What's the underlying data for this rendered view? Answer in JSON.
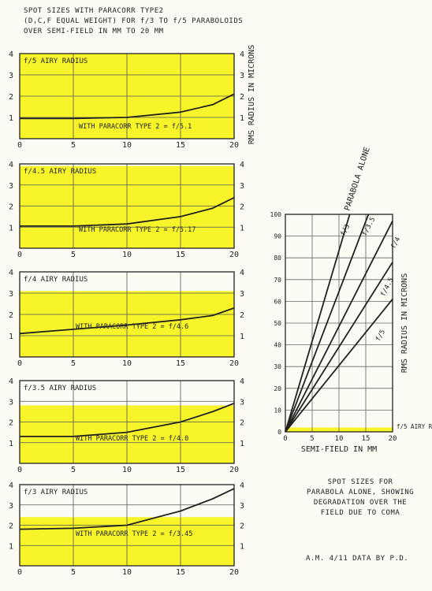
{
  "header": {
    "lines": [
      "SPOT SIZES WITH PARACORR TYPE2",
      "(D,C,F EQUAL WEIGHT) FOR f/3 TO f/5 PARABOLOIDS",
      "OVER SEMI-FIELD IN MM TO 20 MM"
    ]
  },
  "y_axis_side_label": "RMS RADIUS IN MICRONS",
  "colors": {
    "highlight": "#f7f52a",
    "ink": "#222222",
    "paper": "#fbfbf3"
  },
  "chart_data": [
    {
      "type": "line",
      "xlim": [
        0,
        20
      ],
      "ylim": [
        0,
        4
      ],
      "x_ticks": [
        "0",
        "5",
        "10",
        "15",
        "20"
      ],
      "y_ticks": [
        "0",
        "1",
        "2",
        "3",
        "4"
      ],
      "grid": true,
      "highlight_below": 4,
      "airy_label": "f/5 AIRY RADIUS",
      "curve_label": "WITH PARACORR TYPE 2 = f/5.1",
      "x": [
        0,
        5,
        10,
        15,
        18,
        20
      ],
      "y": [
        0.95,
        0.95,
        1.0,
        1.25,
        1.6,
        2.1
      ]
    },
    {
      "type": "line",
      "xlim": [
        0,
        20
      ],
      "ylim": [
        0,
        4
      ],
      "x_ticks": [
        "0",
        "5",
        "10",
        "15",
        "20"
      ],
      "y_ticks": [
        "0",
        "1",
        "2",
        "3",
        "4"
      ],
      "grid": true,
      "highlight_below": 3.9,
      "airy_label": "f/4.5 AIRY RADIUS",
      "curve_label": "WITH PARACORR TYPE 2 = f/5.17",
      "x": [
        0,
        5,
        10,
        15,
        18,
        20
      ],
      "y": [
        1.05,
        1.05,
        1.15,
        1.5,
        1.9,
        2.4
      ]
    },
    {
      "type": "line",
      "xlim": [
        0,
        20
      ],
      "ylim": [
        0,
        4
      ],
      "x_ticks": [
        "0",
        "5",
        "10",
        "15",
        "20"
      ],
      "y_ticks": [
        "0",
        "1",
        "2",
        "3",
        "4"
      ],
      "grid": true,
      "highlight_below": 3.1,
      "airy_label": "f/4 AIRY RADIUS",
      "curve_label": "WITH PARACORR TYPE 2 = f/4.6",
      "x": [
        0,
        5,
        10,
        15,
        18,
        20
      ],
      "y": [
        1.1,
        1.3,
        1.5,
        1.75,
        1.95,
        2.3
      ]
    },
    {
      "type": "line",
      "xlim": [
        0,
        20
      ],
      "ylim": [
        0,
        4
      ],
      "x_ticks": [
        "0",
        "5",
        "10",
        "15",
        "20"
      ],
      "y_ticks": [
        "0",
        "1",
        "2",
        "3",
        "4"
      ],
      "grid": true,
      "highlight_below": 2.8,
      "airy_label": "f/3.5 AIRY RADIUS",
      "curve_label": "WITH PARACORR TYPE 2 = f/4.0",
      "x": [
        0,
        5,
        10,
        15,
        18,
        20
      ],
      "y": [
        1.3,
        1.3,
        1.5,
        2.0,
        2.5,
        2.9
      ]
    },
    {
      "type": "line",
      "xlim": [
        0,
        20
      ],
      "ylim": [
        0,
        4
      ],
      "x_ticks": [
        "0",
        "5",
        "10",
        "15",
        "20"
      ],
      "y_ticks": [
        "0",
        "1",
        "2",
        "3",
        "4"
      ],
      "grid": true,
      "highlight_below": 2.4,
      "airy_label": "f/3 AIRY RADIUS",
      "curve_label": "WITH PARACORR TYPE 2 = f/3.45",
      "x": [
        0,
        5,
        10,
        15,
        18,
        20
      ],
      "y": [
        1.8,
        1.85,
        2.0,
        2.7,
        3.3,
        3.8
      ]
    },
    {
      "type": "line",
      "title": "PARABOLA ALONE",
      "xlabel": "SEMI-FIELD IN MM",
      "ylabel": "RMS RADIUS IN MICRONS",
      "xlim": [
        0,
        20
      ],
      "ylim": [
        0,
        100
      ],
      "x_ticks": [
        "0",
        "5",
        "10",
        "15",
        "20"
      ],
      "y_ticks": [
        "0",
        "10",
        "20",
        "30",
        "40",
        "50",
        "60",
        "70",
        "80",
        "90",
        "100"
      ],
      "grid": true,
      "highlight_below": 2,
      "airy_label": "f/5 AIRY RADIUS",
      "series": [
        {
          "name": "f/3",
          "x": [
            0,
            12
          ],
          "y": [
            0,
            100
          ]
        },
        {
          "name": "f/3.5",
          "x": [
            0,
            15.5
          ],
          "y": [
            0,
            100
          ]
        },
        {
          "name": "f/4",
          "x": [
            0,
            20
          ],
          "y": [
            0,
            97
          ]
        },
        {
          "name": "f/4.5",
          "x": [
            0,
            20
          ],
          "y": [
            0,
            78
          ]
        },
        {
          "name": "f/5",
          "x": [
            0,
            20
          ],
          "y": [
            0,
            61
          ]
        }
      ]
    }
  ],
  "right_caption": [
    "SPOT SIZES FOR",
    "PARABOLA ALONE, SHOWING",
    "DEGRADATION OVER THE",
    "FIELD DUE TO COMA"
  ],
  "credit": "A.M. 4/11   DATA BY  P.D."
}
